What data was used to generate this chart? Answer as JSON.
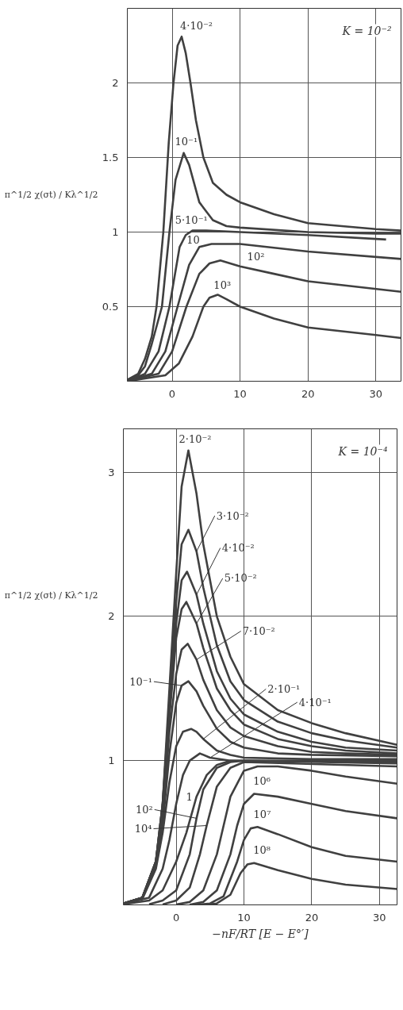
{
  "chart_data": [
    {
      "type": "line",
      "ylabel": "π^1/2 χ(σt) / Kλ^1/2",
      "xlim": [
        -6.6,
        33.7
      ],
      "ylim": [
        0,
        2.5
      ],
      "xticks": [
        0,
        10,
        20,
        30
      ],
      "yticks": [
        0.5,
        1,
        1.5,
        2
      ],
      "grid": true,
      "line_style": "solid",
      "marker": "none",
      "series": [
        {
          "color": "#404040",
          "x": [
            -6.6,
            -5,
            -4,
            -3,
            -2.3,
            -1.3,
            -0.5,
            0.2,
            0.8,
            1.4,
            2,
            2.7,
            3.5,
            4.6,
            6,
            8,
            10,
            15,
            20,
            25,
            30,
            33.7
          ],
          "values": [
            0.01,
            0.05,
            0.15,
            0.3,
            0.5,
            1.0,
            1.6,
            2.0,
            2.25,
            2.31,
            2.2,
            2.0,
            1.75,
            1.5,
            1.33,
            1.25,
            1.2,
            1.12,
            1.06,
            1.04,
            1.02,
            1.01
          ]
        },
        {
          "color": "#404040",
          "x": [
            -6.6,
            -5,
            -4,
            -3,
            -1.5,
            -0.4,
            0.5,
            1.7,
            2.5,
            4,
            6,
            8,
            10,
            20,
            30,
            33.7
          ],
          "values": [
            0.01,
            0.04,
            0.1,
            0.25,
            0.5,
            1.0,
            1.35,
            1.53,
            1.45,
            1.2,
            1.08,
            1.04,
            1.03,
            1.0,
            0.99,
            0.99
          ]
        },
        {
          "color": "#404040",
          "x": [
            -6.6,
            -4,
            -2,
            -0.4,
            1.1,
            2,
            3,
            5,
            10,
            20,
            31.5
          ],
          "values": [
            0,
            0.05,
            0.2,
            0.5,
            0.9,
            0.98,
            1.01,
            1.01,
            1.0,
            0.98,
            0.95
          ]
        },
        {
          "color": "#404040",
          "x": [
            -6.6,
            -3,
            -1,
            0.8,
            2.5,
            4,
            5.8,
            10,
            20,
            33.7
          ],
          "values": [
            0,
            0.05,
            0.2,
            0.5,
            0.78,
            0.9,
            0.92,
            0.92,
            0.87,
            0.82
          ]
        },
        {
          "color": "#404040",
          "x": [
            -6.6,
            -2,
            0,
            2.1,
            4,
            5.5,
            7.1,
            10,
            15,
            20,
            33.7
          ],
          "values": [
            0,
            0.05,
            0.2,
            0.5,
            0.72,
            0.79,
            0.81,
            0.77,
            0.72,
            0.67,
            0.6
          ]
        },
        {
          "color": "#404040",
          "x": [
            -6.6,
            -1,
            1,
            3,
            4.6,
            5.5,
            6.7,
            8,
            10,
            15,
            20,
            30,
            33.7
          ],
          "values": [
            0,
            0.04,
            0.12,
            0.3,
            0.5,
            0.56,
            0.58,
            0.55,
            0.5,
            0.42,
            0.36,
            0.31,
            0.29
          ]
        }
      ],
      "annotations": [
        {
          "text": "4·10⁻²",
          "x": 1.4,
          "y": 2.31
        },
        {
          "text": "10⁻¹",
          "x": 1.7,
          "y": 1.53
        },
        {
          "text": "5·10⁻¹",
          "x": 3,
          "y": 1.01
        },
        {
          "text": "10",
          "x": 4,
          "y": 0.9
        },
        {
          "text": "10²",
          "x": 10,
          "y": 0.77
        },
        {
          "text": "10³",
          "x": 6.7,
          "y": 0.58
        },
        "K = 10⁻²"
      ]
    },
    {
      "type": "line",
      "xlabel": "−nF/RT [E − E°′]",
      "ylabel": "π^1/2 χ(σt) / Kλ^1/2",
      "xlim": [
        -7.8,
        32.6
      ],
      "ylim": [
        0,
        3.3
      ],
      "xticks": [
        0,
        10,
        20,
        30
      ],
      "yticks": [
        1,
        2,
        3
      ],
      "grid": true,
      "line_style": "solid",
      "marker": "none",
      "series": [
        {
          "color": "#404040",
          "x": [
            -7.8,
            -5,
            -3,
            -2,
            -1,
            0,
            0.8,
            1.8,
            3,
            4,
            6,
            8,
            10,
            15,
            20,
            25,
            32.6
          ],
          "values": [
            0.01,
            0.05,
            0.3,
            0.7,
            1.5,
            2.3,
            2.9,
            3.15,
            2.85,
            2.5,
            2.0,
            1.72,
            1.53,
            1.35,
            1.26,
            1.19,
            1.11
          ]
        },
        {
          "color": "#404040",
          "x": [
            -7.8,
            -5,
            -3,
            -2,
            -1,
            0,
            0.8,
            1.8,
            3,
            4,
            6,
            8,
            10,
            15,
            20,
            25,
            32.6
          ],
          "values": [
            0.01,
            0.05,
            0.3,
            0.7,
            1.4,
            2.1,
            2.5,
            2.6,
            2.45,
            2.2,
            1.8,
            1.55,
            1.42,
            1.27,
            1.19,
            1.14,
            1.09
          ]
        },
        {
          "color": "#404040",
          "x": [
            -7.8,
            -5,
            -3,
            -2,
            -1,
            0,
            0.8,
            1.6,
            3,
            4,
            6,
            8,
            10,
            15,
            20,
            25,
            32.6
          ],
          "values": [
            0.01,
            0.05,
            0.3,
            0.7,
            1.35,
            1.95,
            2.25,
            2.31,
            2.15,
            1.95,
            1.62,
            1.43,
            1.32,
            1.2,
            1.13,
            1.09,
            1.07
          ]
        },
        {
          "color": "#404040",
          "x": [
            -7.8,
            -5,
            -3,
            -2,
            -1,
            0,
            0.8,
            1.5,
            3,
            4,
            6,
            8,
            10,
            15,
            20,
            25,
            32.6
          ],
          "values": [
            0.01,
            0.05,
            0.3,
            0.65,
            1.3,
            1.85,
            2.05,
            2.1,
            1.95,
            1.78,
            1.5,
            1.35,
            1.25,
            1.15,
            1.1,
            1.07,
            1.05
          ]
        },
        {
          "color": "#404040",
          "x": [
            -7.8,
            -5,
            -3,
            -2,
            -1,
            0,
            0.8,
            1.7,
            3,
            4,
            6,
            8,
            10,
            15,
            20,
            25,
            32.6
          ],
          "values": [
            0.01,
            0.05,
            0.3,
            0.6,
            1.2,
            1.6,
            1.77,
            1.81,
            1.7,
            1.56,
            1.35,
            1.23,
            1.17,
            1.1,
            1.06,
            1.05,
            1.04
          ]
        },
        {
          "color": "#404040",
          "x": [
            -7.8,
            -5,
            -3,
            -2,
            -1,
            0,
            0.8,
            1.8,
            3,
            4,
            6,
            8,
            10,
            15,
            20,
            32.6
          ],
          "values": [
            0.01,
            0.05,
            0.28,
            0.55,
            1.05,
            1.4,
            1.52,
            1.55,
            1.48,
            1.38,
            1.22,
            1.13,
            1.09,
            1.05,
            1.04,
            1.03
          ]
        },
        {
          "color": "#404040",
          "x": [
            -7.8,
            -5,
            -3,
            -2,
            -1,
            0,
            1,
            2.2,
            3,
            4,
            6,
            8,
            10,
            20,
            32.6
          ],
          "values": [
            0.01,
            0.04,
            0.25,
            0.5,
            0.85,
            1.1,
            1.2,
            1.22,
            1.2,
            1.15,
            1.07,
            1.04,
            1.02,
            1.01,
            1.01
          ]
        },
        {
          "color": "#404040",
          "x": [
            -7.8,
            -4,
            -2,
            -1,
            0,
            1,
            2,
            3.5,
            5,
            8,
            32.6
          ],
          "values": [
            0.01,
            0.05,
            0.25,
            0.45,
            0.7,
            0.9,
            1.0,
            1.05,
            1.02,
            1.0,
            1.0
          ]
        },
        {
          "color": "#404040",
          "x": [
            -7.8,
            -4,
            -2,
            0,
            1.5,
            3,
            4.5,
            6,
            8,
            32.6
          ],
          "values": [
            0.005,
            0.03,
            0.1,
            0.3,
            0.5,
            0.75,
            0.9,
            0.97,
            1.0,
            0.99
          ]
        },
        {
          "color": "#404040",
          "x": [
            -4,
            -2,
            0,
            2,
            3,
            4,
            6,
            8,
            10,
            32.6
          ],
          "values": [
            0.004,
            0.03,
            0.1,
            0.35,
            0.6,
            0.8,
            0.95,
            0.99,
            1.0,
            0.98
          ]
        },
        {
          "color": "#404040",
          "x": [
            -2,
            0,
            2,
            3.5,
            4.5,
            6,
            8,
            10,
            32.6
          ],
          "values": [
            0.003,
            0.03,
            0.12,
            0.35,
            0.55,
            0.82,
            0.95,
            0.99,
            0.96
          ]
        },
        {
          "color": "#404040",
          "x": [
            0,
            2,
            4,
            6,
            7,
            8,
            10,
            12,
            15,
            20,
            25,
            32.6
          ],
          "values": [
            0.002,
            0.02,
            0.1,
            0.35,
            0.55,
            0.75,
            0.93,
            0.96,
            0.96,
            0.93,
            0.89,
            0.84
          ]
        },
        {
          "color": "#404040",
          "x": [
            2,
            4,
            6,
            8,
            9,
            10,
            11.5,
            15,
            20,
            25,
            32.6
          ],
          "values": [
            0.001,
            0.02,
            0.1,
            0.35,
            0.55,
            0.7,
            0.77,
            0.75,
            0.7,
            0.65,
            0.6
          ]
        },
        {
          "color": "#404040",
          "x": [
            3,
            5,
            7,
            9,
            10,
            11,
            12,
            15,
            20,
            25,
            32.6
          ],
          "values": [
            0,
            0.01,
            0.06,
            0.3,
            0.45,
            0.53,
            0.54,
            0.49,
            0.4,
            0.34,
            0.3
          ]
        },
        {
          "color": "#404040",
          "x": [
            4,
            6,
            8,
            9.5,
            10.5,
            11.5,
            15,
            20,
            25,
            32.6
          ],
          "values": [
            0,
            0.01,
            0.07,
            0.22,
            0.28,
            0.29,
            0.24,
            0.18,
            0.14,
            0.11
          ]
        }
      ],
      "annotations": [
        {
          "text": "2·10⁻²",
          "x": 1.8,
          "y": 3.15
        },
        {
          "text": "3·10⁻²",
          "x": 3,
          "y": 2.45
        },
        {
          "text": "4·10⁻²",
          "x": 3,
          "y": 2.15
        },
        {
          "text": "5·10⁻²",
          "x": 3,
          "y": 1.95
        },
        {
          "text": "7·10⁻²",
          "x": 3,
          "y": 1.7
        },
        {
          "text": "10⁻¹",
          "x": 0.8,
          "y": 1.52
        },
        {
          "text": "2·10⁻¹",
          "x": 4,
          "y": 1.15
        },
        {
          "text": "4·10⁻¹",
          "x": 5,
          "y": 1.02
        },
        {
          "text": "1",
          "x": 3,
          "y": 0.75
        },
        {
          "text": "10²",
          "x": 3,
          "y": 0.6
        },
        {
          "text": "10⁴",
          "x": 4.5,
          "y": 0.55
        },
        {
          "text": "10⁶",
          "x": 11.5,
          "y": 0.77
        },
        {
          "text": "10⁷",
          "x": 12,
          "y": 0.54
        },
        {
          "text": "10⁸",
          "x": 11.5,
          "y": 0.29
        },
        "K = 10⁻⁴"
      ]
    }
  ]
}
